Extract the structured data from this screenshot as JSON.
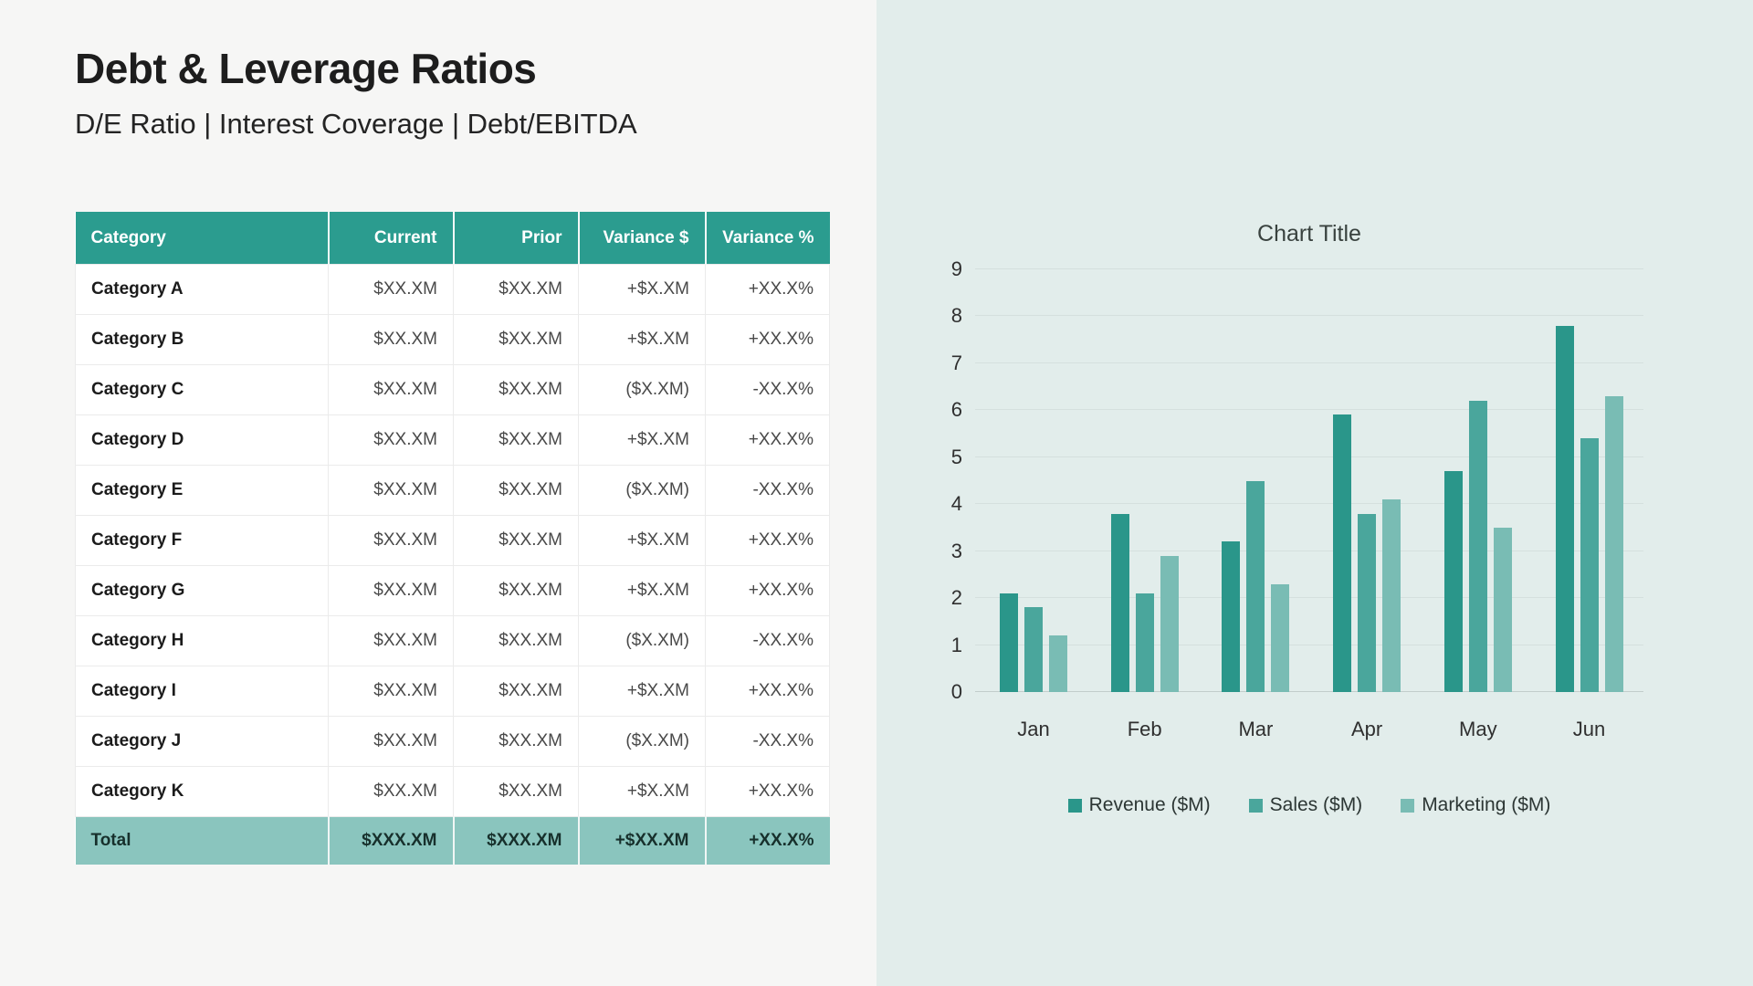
{
  "slide": {
    "title": "Debt & Leverage Ratios",
    "subtitle": "D/E Ratio | Interest Coverage | Debt/EBITDA"
  },
  "table": {
    "columns": [
      "Category",
      "Current",
      "Prior",
      "Variance $",
      "Variance %"
    ],
    "rows": [
      {
        "category": "Category A",
        "current": "$XX.XM",
        "prior": "$XX.XM",
        "variance_usd": "+$X.XM",
        "variance_pct": "+XX.X%"
      },
      {
        "category": "Category B",
        "current": "$XX.XM",
        "prior": "$XX.XM",
        "variance_usd": "+$X.XM",
        "variance_pct": "+XX.X%"
      },
      {
        "category": "Category C",
        "current": "$XX.XM",
        "prior": "$XX.XM",
        "variance_usd": "($X.XM)",
        "variance_pct": "-XX.X%"
      },
      {
        "category": "Category D",
        "current": "$XX.XM",
        "prior": "$XX.XM",
        "variance_usd": "+$X.XM",
        "variance_pct": "+XX.X%"
      },
      {
        "category": "Category E",
        "current": "$XX.XM",
        "prior": "$XX.XM",
        "variance_usd": "($X.XM)",
        "variance_pct": "-XX.X%"
      },
      {
        "category": "Category F",
        "current": "$XX.XM",
        "prior": "$XX.XM",
        "variance_usd": "+$X.XM",
        "variance_pct": "+XX.X%"
      },
      {
        "category": "Category G",
        "current": "$XX.XM",
        "prior": "$XX.XM",
        "variance_usd": "+$X.XM",
        "variance_pct": "+XX.X%"
      },
      {
        "category": "Category H",
        "current": "$XX.XM",
        "prior": "$XX.XM",
        "variance_usd": "($X.XM)",
        "variance_pct": "-XX.X%"
      },
      {
        "category": "Category I",
        "current": "$XX.XM",
        "prior": "$XX.XM",
        "variance_usd": "+$X.XM",
        "variance_pct": "+XX.X%"
      },
      {
        "category": "Category J",
        "current": "$XX.XM",
        "prior": "$XX.XM",
        "variance_usd": "($X.XM)",
        "variance_pct": "-XX.X%"
      },
      {
        "category": "Category K",
        "current": "$XX.XM",
        "prior": "$XX.XM",
        "variance_usd": "+$X.XM",
        "variance_pct": "+XX.X%"
      }
    ],
    "total": {
      "category": "Total",
      "current": "$XXX.XM",
      "prior": "$XXX.XM",
      "variance_usd": "+$XX.XM",
      "variance_pct": "+XX.X%"
    }
  },
  "chart_data": {
    "type": "bar",
    "title": "Chart Title",
    "categories": [
      "Jan",
      "Feb",
      "Mar",
      "Apr",
      "May",
      "Jun"
    ],
    "series": [
      {
        "name": "Revenue ($M)",
        "color": "#2a968a",
        "values": [
          2.1,
          3.8,
          3.2,
          5.9,
          4.7,
          7.8
        ]
      },
      {
        "name": "Sales ($M)",
        "color": "#4aa69c",
        "values": [
          1.8,
          2.1,
          4.5,
          3.8,
          6.2,
          5.4
        ]
      },
      {
        "name": "Marketing ($M)",
        "color": "#79bcb4",
        "values": [
          1.2,
          2.9,
          2.3,
          4.1,
          3.5,
          6.3
        ]
      }
    ],
    "ylim": [
      0,
      9
    ],
    "yticks": [
      0,
      1,
      2,
      3,
      4,
      5,
      6,
      7,
      8,
      9
    ],
    "grid": true,
    "legend_position": "bottom"
  },
  "colors": {
    "left_background": "#f6f6f5",
    "right_background": "#e2edeb",
    "header_teal": "#2b9c8f",
    "total_row_teal": "#8ac5be",
    "gridline": "#d5e0de"
  }
}
